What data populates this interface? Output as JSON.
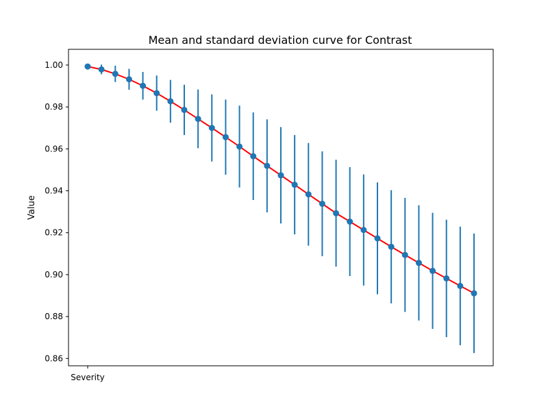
{
  "chart_data": {
    "type": "line",
    "title": "Mean and standard deviation curve for Contrast",
    "xlabel": "",
    "ylabel": "Value",
    "x_tick_labels": [
      "Severity"
    ],
    "x": [
      1,
      2,
      3,
      4,
      5,
      6,
      7,
      8,
      9,
      10,
      11,
      12,
      13,
      14,
      15,
      16,
      17,
      18,
      19,
      20,
      21,
      22,
      23,
      24,
      25,
      26,
      27,
      28,
      29
    ],
    "mean": [
      0.9993,
      0.9979,
      0.9958,
      0.9932,
      0.9901,
      0.9866,
      0.9827,
      0.9786,
      0.9743,
      0.97,
      0.9656,
      0.9611,
      0.9565,
      0.9519,
      0.9474,
      0.9429,
      0.9383,
      0.9338,
      0.9293,
      0.9253,
      0.9213,
      0.9173,
      0.9133,
      0.9094,
      0.9056,
      0.9018,
      0.8982,
      0.8946,
      0.8911
    ],
    "std": [
      0.0003,
      0.0023,
      0.0039,
      0.005,
      0.0066,
      0.0084,
      0.0102,
      0.012,
      0.014,
      0.016,
      0.0179,
      0.0195,
      0.0209,
      0.0222,
      0.023,
      0.0237,
      0.0245,
      0.025,
      0.0255,
      0.026,
      0.0265,
      0.0267,
      0.027,
      0.0272,
      0.0275,
      0.0277,
      0.028,
      0.0283,
      0.0285
    ],
    "ylim": [
      0.8565,
      1.0075
    ],
    "y_ticks": [
      0.86,
      0.88,
      0.9,
      0.92,
      0.94,
      0.96,
      0.98,
      1.0
    ],
    "y_tick_labels": [
      "0.86",
      "0.88",
      "0.90",
      "0.92",
      "0.94",
      "0.96",
      "0.98",
      "1.00"
    ],
    "grid": false,
    "colors": {
      "line": "#ff0000",
      "marker": "#1f77b4",
      "errorbar": "#1f77b4"
    }
  }
}
